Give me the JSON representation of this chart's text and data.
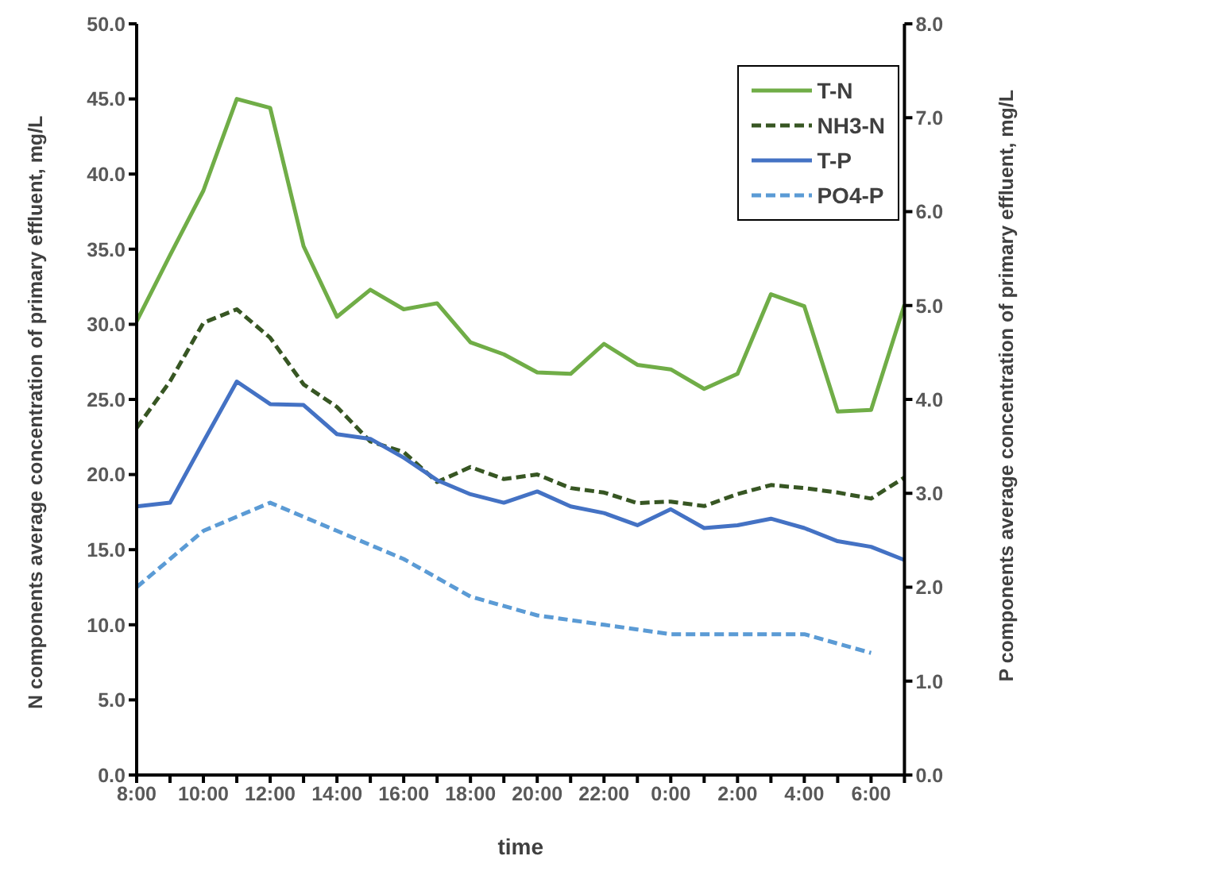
{
  "chart_data": {
    "type": "line",
    "xlabel": "time",
    "ylabel": "N components average concentration of primary effluent, mg/L",
    "y2label": "P components average concentration of primary effluent, mg/L",
    "categories": [
      "8:00",
      null,
      "10:00",
      null,
      "12:00",
      null,
      "14:00",
      null,
      "16:00",
      null,
      "18:00",
      null,
      "20:00",
      null,
      "22:00",
      null,
      "0:00",
      null,
      "2:00",
      null,
      "4:00",
      null,
      "6:00",
      null
    ],
    "series": [
      {
        "name": "T-N",
        "color": "#70ad47",
        "line_style": "solid",
        "values": [
          30.2,
          34.6,
          38.9,
          45.0,
          44.4,
          35.2,
          30.5,
          32.3,
          31.0,
          31.4,
          28.8,
          28.0,
          26.8,
          26.7,
          28.7,
          27.3,
          27.0,
          25.7,
          26.7,
          32.0,
          31.2,
          24.2,
          24.3,
          31.3
        ]
      },
      {
        "name": "NH3-N",
        "color": "#375623",
        "line_style": "dashed",
        "values": [
          23.1,
          26.2,
          30.1,
          31.0,
          29.1,
          26.0,
          24.5,
          22.2,
          21.5,
          19.5,
          20.5,
          19.7,
          20.0,
          19.1,
          18.8,
          18.1,
          18.2,
          17.9,
          18.7,
          19.3,
          19.1,
          18.8,
          18.4,
          19.8
        ]
      },
      {
        "name": "T-P",
        "color": "#4472c4",
        "line_style": "solid",
        "axis": "y2",
        "values": [
          2.86,
          2.9,
          3.55,
          4.19,
          3.95,
          3.94,
          3.63,
          3.58,
          3.38,
          3.14,
          2.99,
          2.9,
          3.02,
          2.86,
          2.79,
          2.66,
          2.83,
          2.63,
          2.66,
          2.73,
          2.63,
          2.49,
          2.43,
          2.29
        ]
      },
      {
        "name": "PO4-P",
        "color": "#5b9bd5",
        "line_style": "dashed",
        "axis": "y2",
        "values": [
          2.0,
          2.3,
          2.6,
          2.75,
          2.9,
          2.75,
          2.6,
          2.45,
          2.3,
          2.1,
          1.9,
          1.8,
          1.7,
          1.65,
          1.6,
          1.55,
          1.5,
          1.5,
          1.5,
          1.5,
          1.5,
          1.4,
          1.3,
          null
        ]
      }
    ],
    "ylim": [
      0,
      50
    ],
    "yticks": [
      {
        "value": 0,
        "label": "0.0"
      },
      {
        "value": 5,
        "label": "5.0"
      },
      {
        "value": 10,
        "label": "10.0"
      },
      {
        "value": 15,
        "label": "15.0"
      },
      {
        "value": 20,
        "label": "20.0"
      },
      {
        "value": 25,
        "label": "25.0"
      },
      {
        "value": 30,
        "label": "30.0"
      },
      {
        "value": 35,
        "label": "35.0"
      },
      {
        "value": 40,
        "label": "40.0"
      },
      {
        "value": 45,
        "label": "45.0"
      },
      {
        "value": 50,
        "label": "50.0"
      }
    ],
    "y2lim": [
      0,
      8
    ],
    "y2ticks": [
      {
        "value": 0,
        "label": "0.0"
      },
      {
        "value": 1,
        "label": "1.0"
      },
      {
        "value": 2,
        "label": "2.0"
      },
      {
        "value": 3,
        "label": "3.0"
      },
      {
        "value": 4,
        "label": "4.0"
      },
      {
        "value": 5,
        "label": "5.0"
      },
      {
        "value": 6,
        "label": "6.0"
      },
      {
        "value": 7,
        "label": "7.0"
      },
      {
        "value": 8,
        "label": "8.0"
      }
    ],
    "grid": false,
    "legend": "top right",
    "marker": "none"
  }
}
